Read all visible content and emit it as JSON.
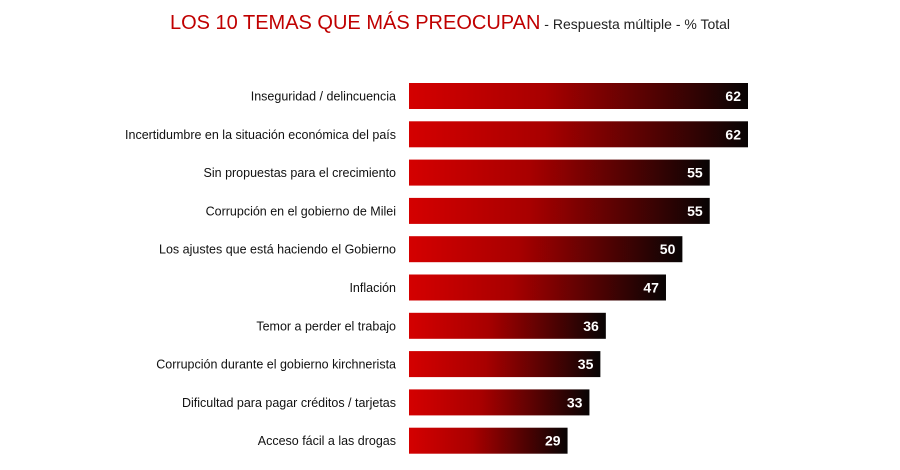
{
  "chart_data": {
    "type": "bar",
    "orientation": "horizontal",
    "title": "LOS 10 TEMAS QUE MÁS PREOCUPAN",
    "subtitle": " - Respuesta múltiple - % Total",
    "categories": [
      "Inseguridad / delincuencia",
      "Incertidumbre en la situación económica del país",
      "Sin propuestas para el crecimiento",
      "Corrupción en el gobierno de Milei",
      "Los ajustes que está haciendo el Gobierno",
      "Inflación",
      "Temor a perder el trabajo",
      "Corrupción durante el gobierno kirchnerista",
      "Dificultad para pagar créditos / tarjetas",
      "Acceso fácil a las drogas"
    ],
    "values": [
      62,
      62,
      55,
      55,
      50,
      47,
      36,
      35,
      33,
      29
    ],
    "xlim": [
      0,
      62
    ],
    "xlabel": "",
    "ylabel": "",
    "grid": false,
    "legend": "none"
  },
  "colors": {
    "title": "#c00000",
    "bar_start": "#d40000",
    "bar_mid": "#a80000",
    "bar_end": "#080404",
    "value_text": "#ffffff"
  }
}
